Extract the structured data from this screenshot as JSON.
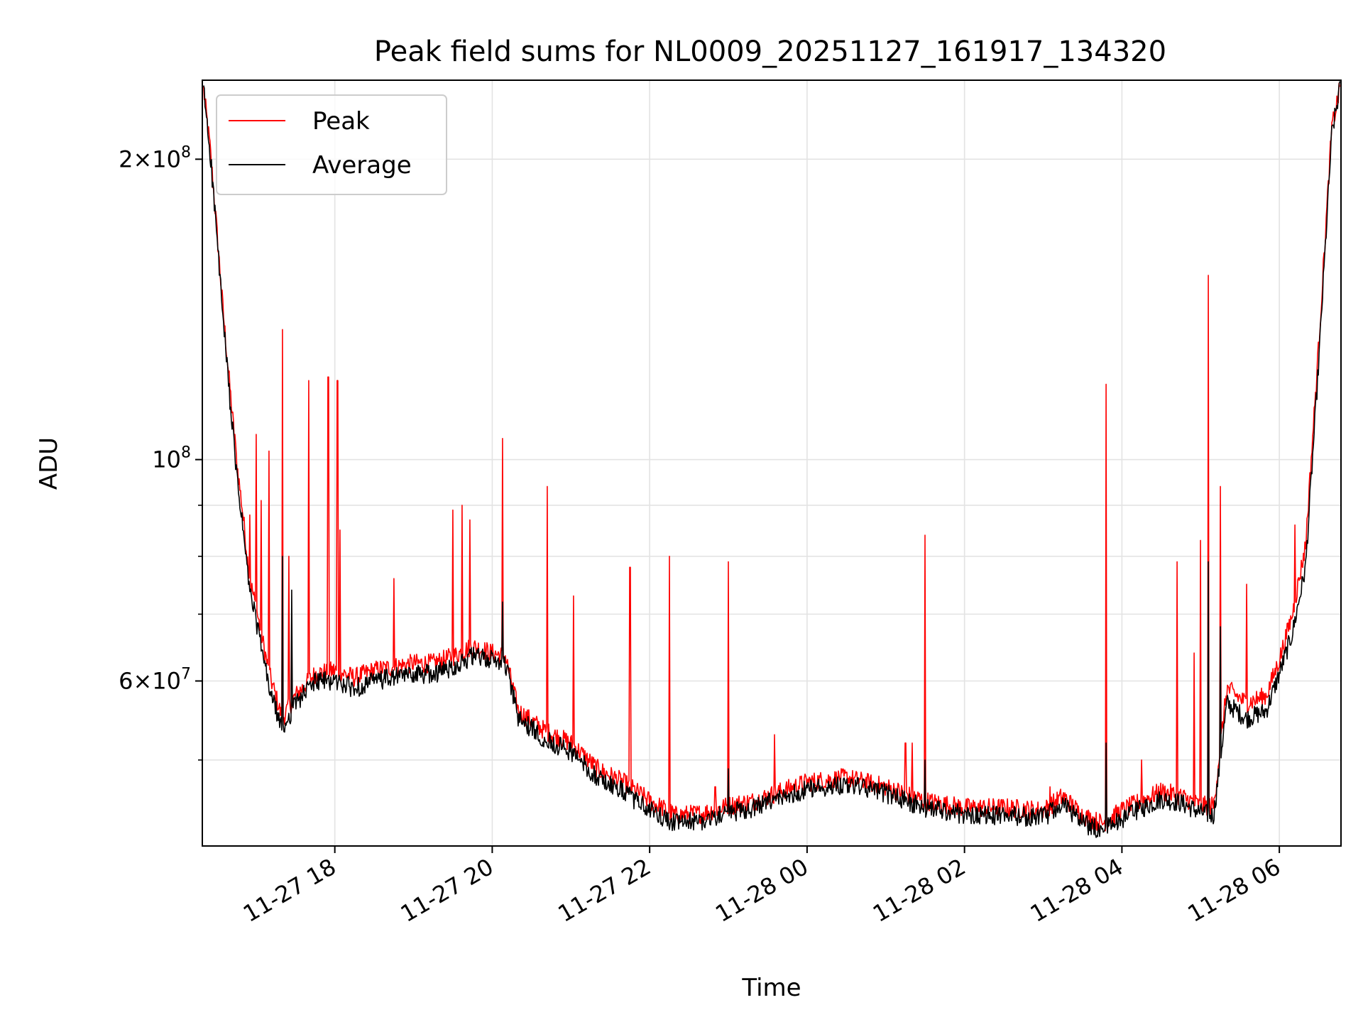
{
  "chart_data": {
    "type": "line",
    "title": "Peak field sums for NL0009_20251127_161917_134320",
    "xlabel": "Time",
    "ylabel": "ADU",
    "yscale": "log",
    "ylim": [
      41000000,
      240000000
    ],
    "xlim": [
      "2025-11-27 16:19",
      "2025-11-28 06:47"
    ],
    "grid": true,
    "legend_position": "top-left",
    "x_ticks": [
      "11-27 18",
      "11-27 20",
      "11-27 22",
      "11-28 00",
      "11-28 02",
      "11-28 04",
      "11-28 06"
    ],
    "y_ticks": [
      {
        "value": 200000000,
        "mant": "2",
        "sym": "×",
        "base": "10",
        "exp": "8"
      },
      {
        "value": 100000000,
        "mant": "",
        "sym": "",
        "base": "10",
        "exp": "8"
      },
      {
        "value": 60000000,
        "mant": "6",
        "sym": "×",
        "base": "10",
        "exp": "7"
      }
    ],
    "y_minor_ticks": [
      50000000,
      70000000,
      80000000,
      90000000
    ],
    "x": [
      "2025-11-27 16:20",
      "2025-11-27 16:25",
      "2025-11-27 16:30",
      "2025-11-27 16:35",
      "2025-11-27 16:40",
      "2025-11-27 16:45",
      "2025-11-27 16:50",
      "2025-11-27 16:55",
      "2025-11-27 17:00",
      "2025-11-27 17:10",
      "2025-11-27 17:20",
      "2025-11-27 17:30",
      "2025-11-27 17:45",
      "2025-11-27 18:00",
      "2025-11-27 18:15",
      "2025-11-27 18:30",
      "2025-11-27 18:45",
      "2025-11-27 19:00",
      "2025-11-27 19:15",
      "2025-11-27 19:30",
      "2025-11-27 19:45",
      "2025-11-27 20:00",
      "2025-11-27 20:10",
      "2025-11-27 20:20",
      "2025-11-27 20:40",
      "2025-11-27 21:00",
      "2025-11-27 21:20",
      "2025-11-27 21:40",
      "2025-11-27 22:00",
      "2025-11-27 22:20",
      "2025-11-27 22:40",
      "2025-11-27 23:00",
      "2025-11-27 23:20",
      "2025-11-27 23:40",
      "2025-11-28 00:00",
      "2025-11-28 00:30",
      "2025-11-28 01:00",
      "2025-11-28 01:30",
      "2025-11-28 02:00",
      "2025-11-28 02:30",
      "2025-11-28 03:00",
      "2025-11-28 03:15",
      "2025-11-28 03:30",
      "2025-11-28 03:45",
      "2025-11-28 04:00",
      "2025-11-28 04:15",
      "2025-11-28 04:30",
      "2025-11-28 04:45",
      "2025-11-28 05:00",
      "2025-11-28 05:10",
      "2025-11-28 05:20",
      "2025-11-28 05:35",
      "2025-11-28 05:50",
      "2025-11-28 06:00",
      "2025-11-28 06:10",
      "2025-11-28 06:20",
      "2025-11-28 06:30",
      "2025-11-28 06:40",
      "2025-11-28 06:46"
    ],
    "series": [
      {
        "name": "Peak",
        "color": "#ff0000",
        "values": [
          235000000,
          205000000,
          170000000,
          140000000,
          118000000,
          100000000,
          88000000,
          76000000,
          71000000,
          61000000,
          55000000,
          58000000,
          61000000,
          61500000,
          60500000,
          61500000,
          62000000,
          62500000,
          62500000,
          63500000,
          65000000,
          64000000,
          63500000,
          56000000,
          53500000,
          52000000,
          49000000,
          47500000,
          45500000,
          44000000,
          44200000,
          45000000,
          45500000,
          46500000,
          47500000,
          48000000,
          47000000,
          45500000,
          44800000,
          44800000,
          44500000,
          46000000,
          44000000,
          43200000,
          44500000,
          45500000,
          46500000,
          46000000,
          45000000,
          45000000,
          59000000,
          57000000,
          58000000,
          63000000,
          70000000,
          82000000,
          130000000,
          215000000,
          235000000
        ],
        "spikes": [
          [
            "2025-11-27 16:44",
            106000000
          ],
          [
            "2025-11-27 16:55",
            88000000
          ],
          [
            "2025-11-27 17:00",
            106000000
          ],
          [
            "2025-11-27 17:04",
            91000000
          ],
          [
            "2025-11-27 17:10",
            102000000
          ],
          [
            "2025-11-27 17:20",
            135000000
          ],
          [
            "2025-11-27 17:25",
            80000000
          ],
          [
            "2025-11-27 17:40",
            120000000
          ],
          [
            "2025-11-27 17:55",
            121000000
          ],
          [
            "2025-11-27 18:02",
            120000000
          ],
          [
            "2025-11-27 18:04",
            85000000
          ],
          [
            "2025-11-27 18:45",
            76000000
          ],
          [
            "2025-11-27 19:30",
            89000000
          ],
          [
            "2025-11-27 19:37",
            90000000
          ],
          [
            "2025-11-27 19:43",
            87000000
          ],
          [
            "2025-11-27 20:08",
            105000000
          ],
          [
            "2025-11-27 20:42",
            94000000
          ],
          [
            "2025-11-27 21:02",
            73000000
          ],
          [
            "2025-11-27 21:45",
            78000000
          ],
          [
            "2025-11-27 22:15",
            80000000
          ],
          [
            "2025-11-27 22:50",
            47000000
          ],
          [
            "2025-11-27 23:00",
            79000000
          ],
          [
            "2025-11-27 23:35",
            53000000
          ],
          [
            "2025-11-28 01:15",
            52000000
          ],
          [
            "2025-11-28 01:20",
            52000000
          ],
          [
            "2025-11-28 01:30",
            84000000
          ],
          [
            "2025-11-28 03:05",
            47000000
          ],
          [
            "2025-11-28 03:48",
            119000000
          ],
          [
            "2025-11-28 04:15",
            50000000
          ],
          [
            "2025-11-28 04:42",
            79000000
          ],
          [
            "2025-11-28 04:55",
            64000000
          ],
          [
            "2025-11-28 05:00",
            83000000
          ],
          [
            "2025-11-28 05:06",
            153000000
          ],
          [
            "2025-11-28 05:15",
            94000000
          ],
          [
            "2025-11-28 05:35",
            75000000
          ],
          [
            "2025-11-28 06:12",
            86000000
          ]
        ]
      },
      {
        "name": "Average",
        "color": "#000000",
        "values": [
          235000000,
          203000000,
          168000000,
          137000000,
          115000000,
          97000000,
          85000000,
          74000000,
          69000000,
          59000000,
          53500000,
          57000000,
          60000000,
          60000000,
          59000000,
          60000000,
          60500000,
          61000000,
          61000000,
          62000000,
          63500000,
          63000000,
          62500000,
          55000000,
          52500000,
          51000000,
          48000000,
          46500000,
          44500000,
          43200000,
          43500000,
          44200000,
          44800000,
          45800000,
          46800000,
          47300000,
          46300000,
          44800000,
          44100000,
          44000000,
          43800000,
          45200000,
          43200000,
          42500000,
          43700000,
          44700000,
          45700000,
          45300000,
          44300000,
          44000000,
          57000000,
          55000000,
          56000000,
          61000000,
          67000000,
          78000000,
          125000000,
          212000000,
          235000000
        ],
        "spikes": [
          [
            "2025-11-27 17:20",
            80000000
          ],
          [
            "2025-11-27 17:27",
            74000000
          ],
          [
            "2025-11-27 20:08",
            72000000
          ],
          [
            "2025-11-27 23:00",
            49000000
          ],
          [
            "2025-11-28 01:30",
            50000000
          ],
          [
            "2025-11-28 03:48",
            52000000
          ],
          [
            "2025-11-28 05:06",
            79000000
          ],
          [
            "2025-11-28 05:15",
            68000000
          ]
        ]
      }
    ]
  }
}
